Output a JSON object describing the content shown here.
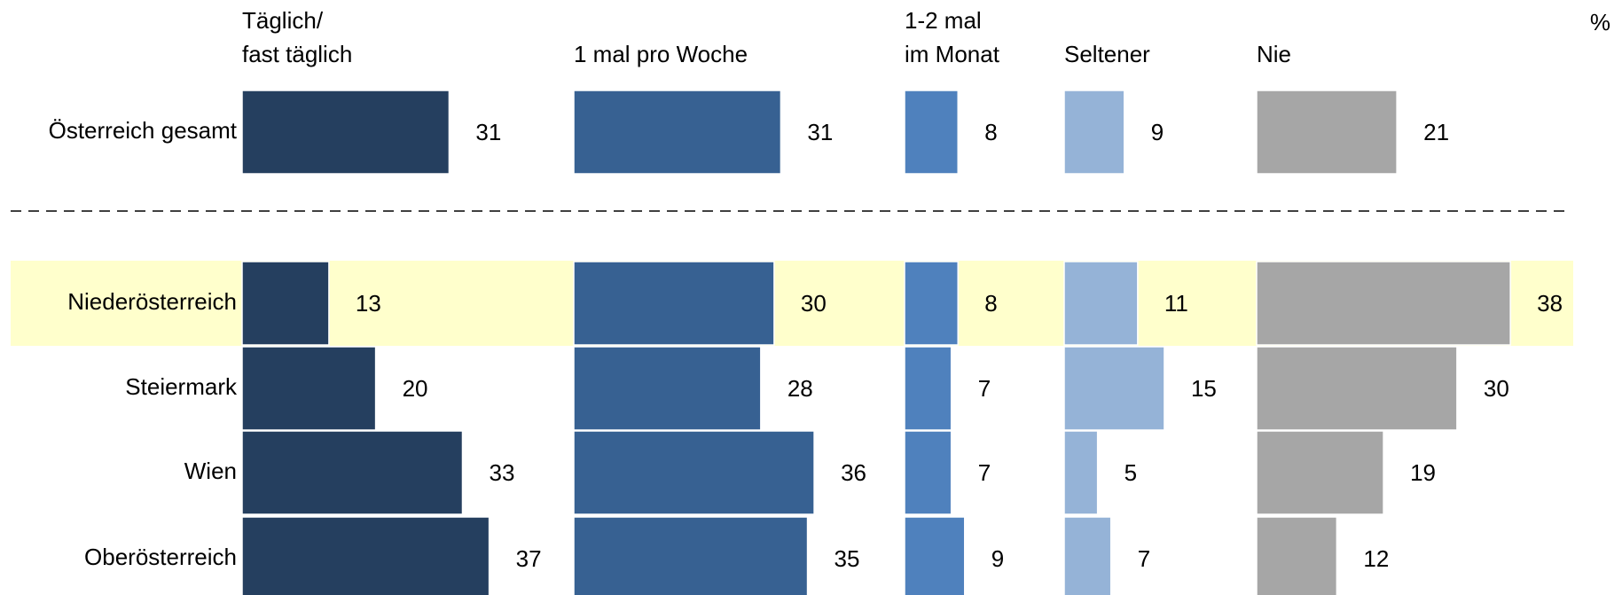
{
  "chart_data": {
    "type": "bar",
    "unit_label": "%",
    "categories": [
      "Österreich gesamt",
      "Niederösterreich",
      "Steiermark",
      "Wien",
      "Oberösterreich"
    ],
    "highlight": "Niederösterreich",
    "highlight_color": "#ffffcc",
    "series": [
      {
        "name": "Täglich/\nfast täglich",
        "color": "#253f5f",
        "values": [
          31,
          13,
          20,
          33,
          37
        ]
      },
      {
        "name": "1 mal pro Woche",
        "color": "#376192",
        "values": [
          31,
          30,
          28,
          36,
          35
        ]
      },
      {
        "name": "1-2 mal\nim Monat",
        "color": "#4f81bd",
        "values": [
          8,
          8,
          7,
          7,
          9
        ]
      },
      {
        "name": "Seltener",
        "color": "#95b3d7",
        "values": [
          9,
          11,
          15,
          5,
          7
        ]
      },
      {
        "name": "Nie",
        "color": "#a6a6a6",
        "values": [
          21,
          38,
          30,
          19,
          12
        ]
      }
    ]
  }
}
